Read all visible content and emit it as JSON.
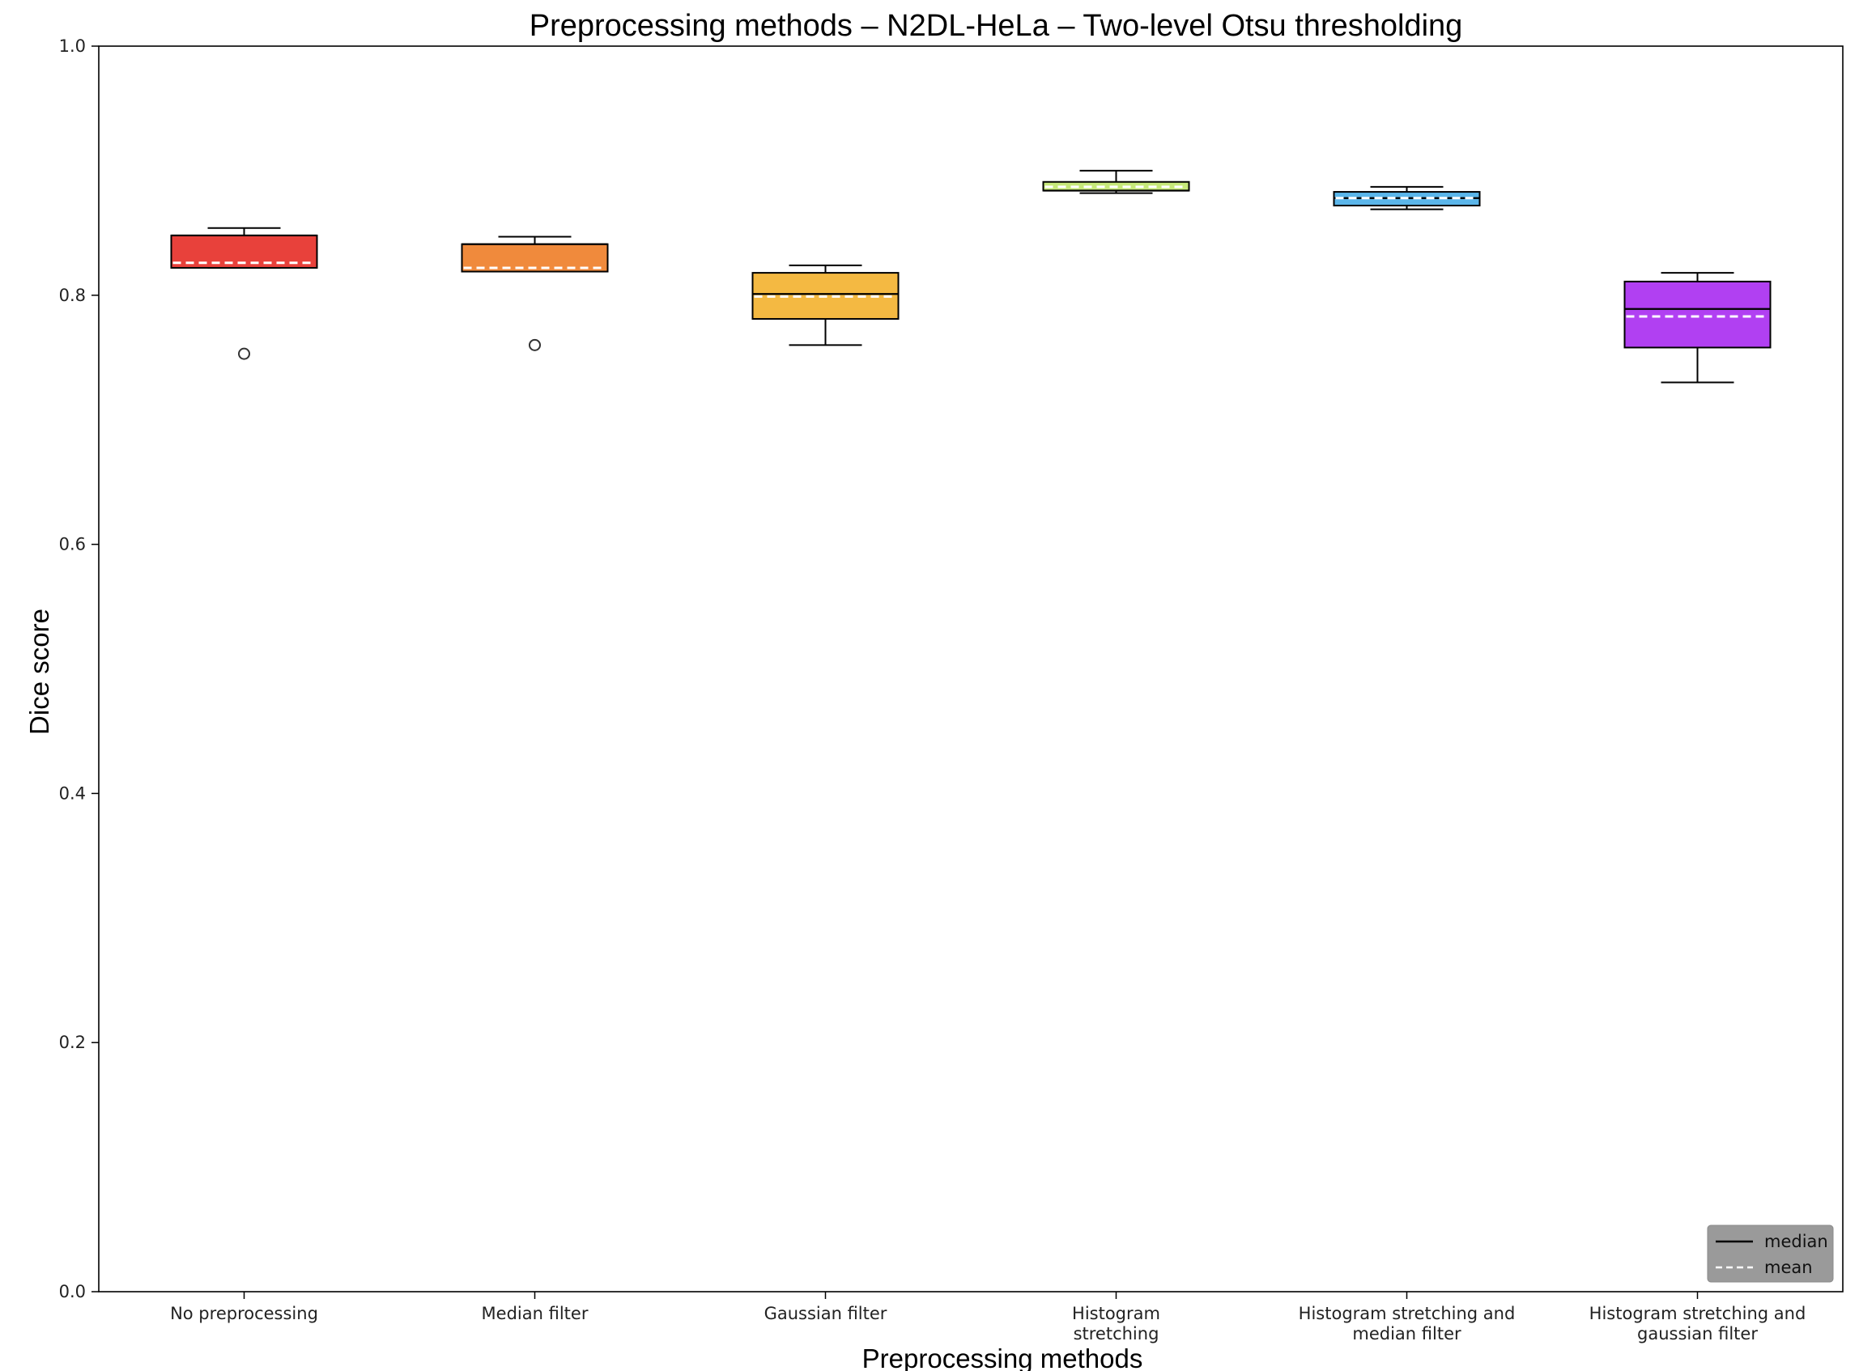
{
  "chart_data": {
    "type": "box",
    "title": "Preprocessing methods – N2DL-HeLa – Two-level Otsu thresholding",
    "xlabel": "Preprocessing methods",
    "ylabel": "Dice score",
    "ylim": [
      0,
      1.0
    ],
    "yticks": [
      "0.0",
      "0.2",
      "0.4",
      "0.6",
      "0.8",
      "1.0"
    ],
    "grid": false,
    "legend": {
      "position": "bottom-right",
      "entries": [
        {
          "label": "median",
          "style": "solid",
          "color": "#000000"
        },
        {
          "label": "mean",
          "style": "dashed",
          "color": "#ffffff"
        }
      ]
    },
    "categories": [
      {
        "label": [
          "No preprocessing"
        ],
        "color": "#e8413b",
        "whisker_low": 0.822,
        "q1": 0.822,
        "median": 0.848,
        "q3": 0.848,
        "whisker_high": 0.854,
        "mean": 0.826,
        "outliers": [
          0.753
        ]
      },
      {
        "label": [
          "Median filter"
        ],
        "color": "#f08a3c",
        "whisker_low": 0.819,
        "q1": 0.819,
        "median": 0.841,
        "q3": 0.841,
        "whisker_high": 0.847,
        "mean": 0.822,
        "outliers": [
          0.76
        ]
      },
      {
        "label": [
          "Gaussian filter"
        ],
        "color": "#f4b942",
        "whisker_low": 0.76,
        "q1": 0.781,
        "median": 0.801,
        "q3": 0.818,
        "whisker_high": 0.824,
        "mean": 0.799,
        "outliers": []
      },
      {
        "label": [
          "Histogram",
          "stretching"
        ],
        "color": "#c6e87a",
        "whisker_low": 0.882,
        "q1": 0.884,
        "median": 0.884,
        "q3": 0.891,
        "whisker_high": 0.9,
        "mean": 0.887,
        "outliers": []
      },
      {
        "label": [
          "Histogram stretching and",
          "median filter"
        ],
        "color": "#5bb6ea",
        "whisker_low": 0.869,
        "q1": 0.872,
        "median": 0.878,
        "q3": 0.883,
        "whisker_high": 0.887,
        "mean": 0.878,
        "outliers": []
      },
      {
        "label": [
          "Histogram stretching and",
          "gaussian filter"
        ],
        "color": "#b140f2",
        "whisker_low": 0.73,
        "q1": 0.758,
        "median": 0.789,
        "q3": 0.811,
        "whisker_high": 0.818,
        "mean": 0.783,
        "outliers": []
      }
    ]
  }
}
